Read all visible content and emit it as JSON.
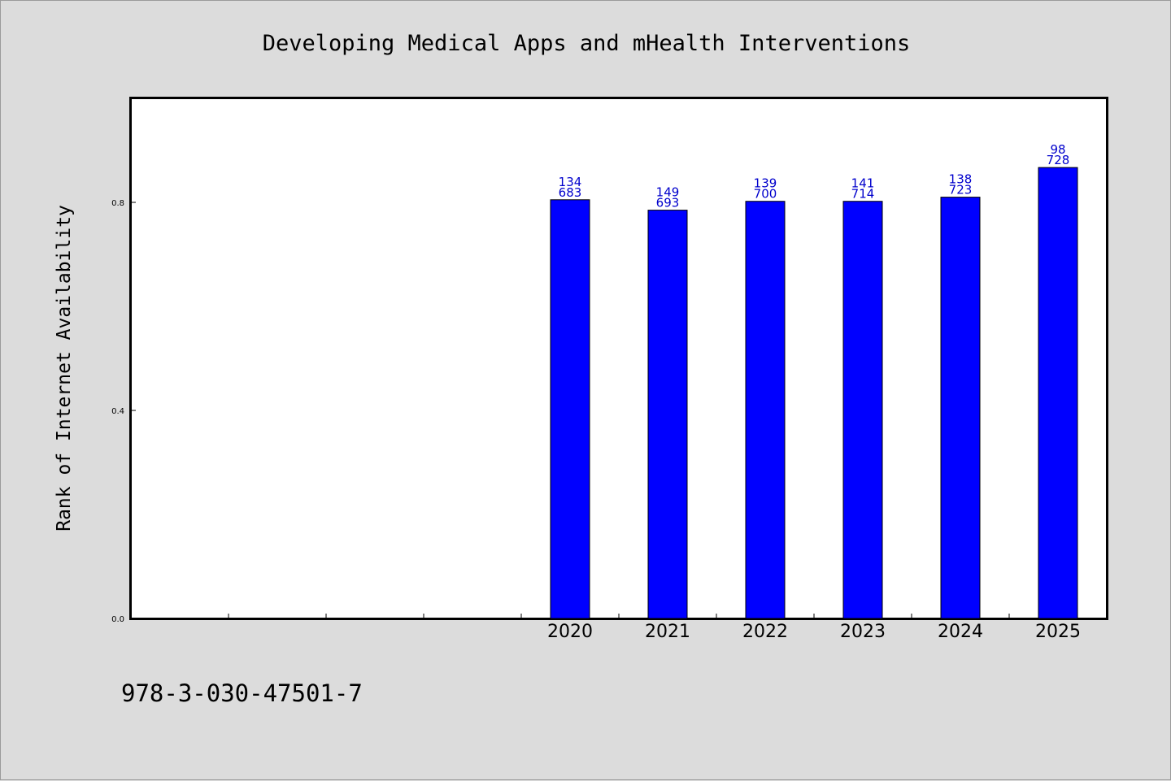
{
  "chart_data": {
    "type": "bar",
    "title": "Developing Medical Apps and mHealth Interventions",
    "ylabel": "Rank of Internet Availability",
    "xlabel": "",
    "categories": [
      "2020",
      "2021",
      "2022",
      "2023",
      "2024",
      "2025"
    ],
    "values": [
      0.805,
      0.785,
      0.802,
      0.802,
      0.81,
      0.867
    ],
    "bar_labels": [
      [
        "134",
        "683"
      ],
      [
        "149",
        "693"
      ],
      [
        "139",
        "700"
      ],
      [
        "141",
        "714"
      ],
      [
        "138",
        "723"
      ],
      [
        "98",
        "728"
      ]
    ],
    "yticks": [
      "0.0",
      "0.4",
      "0.8"
    ],
    "ytick_values": [
      0.0,
      0.4,
      0.8
    ],
    "ylim": [
      0,
      1.0
    ],
    "empty_leading_slots": 4,
    "grid": false,
    "bar_color": "#0000ff",
    "label_color": "#0000cc"
  },
  "footer": {
    "isbn": "978-3-030-47501-7"
  },
  "colors": {
    "background": "#dcdcdc",
    "plot_background": "#ffffff"
  }
}
